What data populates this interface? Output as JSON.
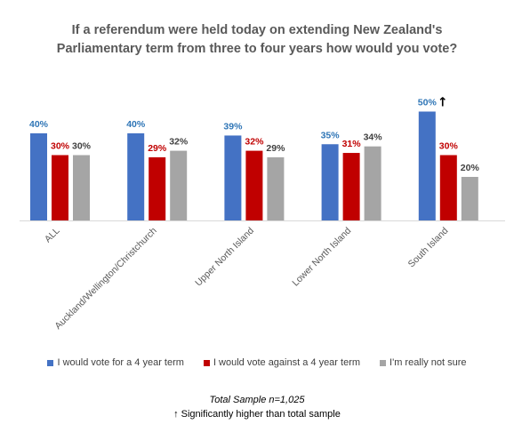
{
  "chart_data": {
    "type": "bar",
    "title_lines": [
      "If a referendum were held today on extending New Zealand's",
      "Parliamentary term from three to four years how would you vote?"
    ],
    "categories": [
      "ALL",
      "Auckland/Wellington/Christchurch",
      "Upper North Island",
      "Lower North Island",
      "South Island"
    ],
    "series": [
      {
        "name": "I would vote for a 4 year term",
        "values": [
          40,
          40,
          39,
          35,
          50
        ],
        "labels": [
          "40%",
          "40%",
          "39%",
          "35%",
          "50%"
        ],
        "color": "#4472C4",
        "label_color": "#2E75B6"
      },
      {
        "name": "I would vote against a 4 year term",
        "values": [
          30,
          29,
          32,
          31,
          30
        ],
        "labels": [
          "30%",
          "29%",
          "32%",
          "31%",
          "30%"
        ],
        "color": "#C00000",
        "label_color": "#C00000"
      },
      {
        "name": "I'm really not sure",
        "values": [
          30,
          32,
          29,
          34,
          20
        ],
        "labels": [
          "30%",
          "32%",
          "29%",
          "34%",
          "20%"
        ],
        "color": "#A5A5A5",
        "label_color": "#404040"
      }
    ],
    "ylim": [
      0,
      55
    ],
    "grid": false,
    "legend_position": "bottom",
    "significant_markers": [
      {
        "series": 0,
        "category": 4,
        "icon": "up-arrow-icon"
      }
    ]
  },
  "footnote": "Total Sample n=1,025",
  "significance_note": "Significantly higher than total sample"
}
